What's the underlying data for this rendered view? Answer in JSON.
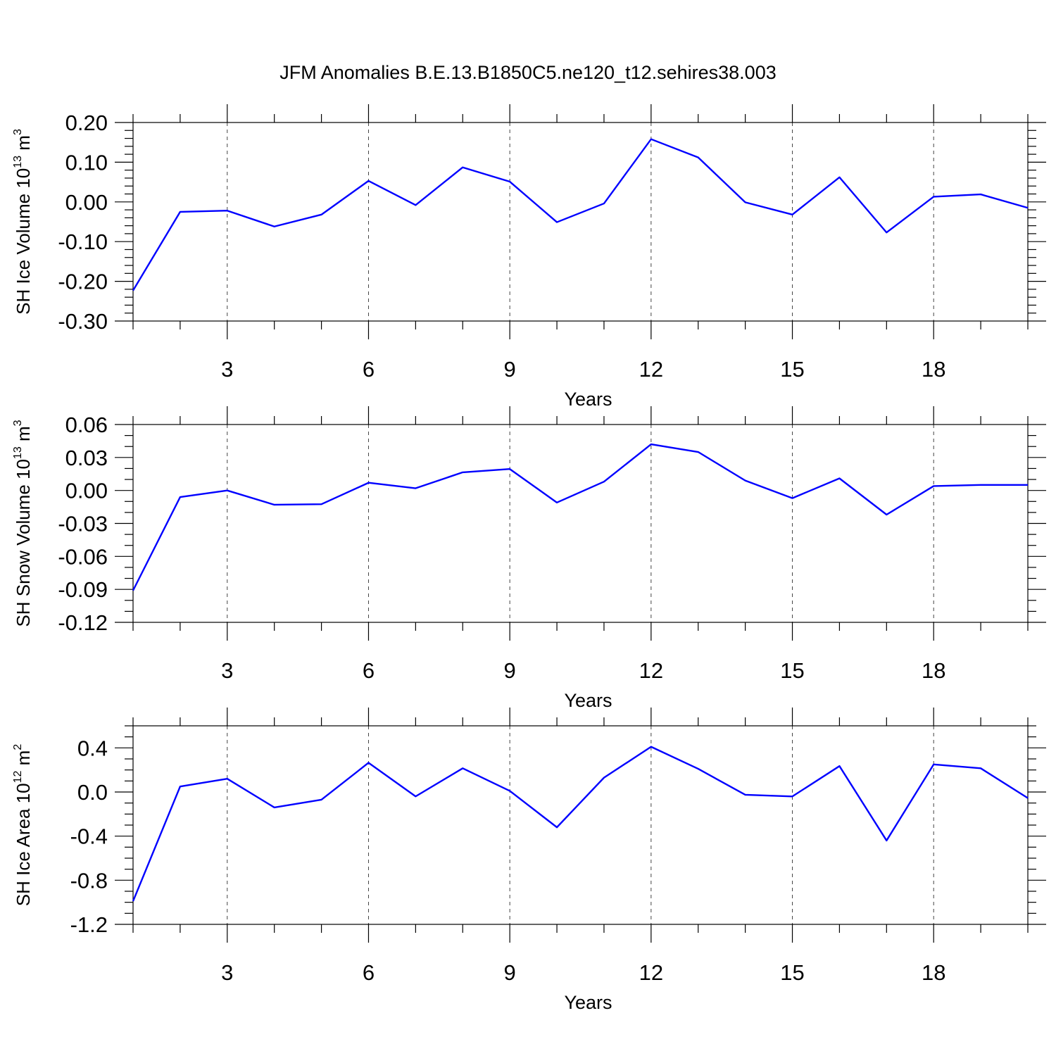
{
  "title": "JFM Anomalies B.E.13.B1850C5.ne120_t12.sehires38.003",
  "line_color": "#0000ff",
  "chart_data": [
    {
      "type": "line",
      "ylabel": "SH Ice Volume 10",
      "ylabel_exp": "13",
      "ylabel_unit": " m",
      "ylabel_unit_exp": "3",
      "xlabel": "Years",
      "x": [
        1,
        2,
        3,
        4,
        5,
        6,
        7,
        8,
        9,
        10,
        11,
        12,
        13,
        14,
        15,
        16,
        17,
        18,
        19,
        20
      ],
      "values": [
        -0.223,
        -0.025,
        -0.022,
        -0.062,
        -0.032,
        0.053,
        -0.008,
        0.087,
        0.051,
        -0.051,
        -0.004,
        0.158,
        0.112,
        -0.001,
        -0.032,
        0.062,
        -0.077,
        0.013,
        0.019,
        -0.015
      ],
      "xlim": [
        1,
        20
      ],
      "ylim": [
        -0.3,
        0.2
      ],
      "xticks": [
        3,
        6,
        9,
        12,
        15,
        18
      ],
      "xtick_labels": [
        "3",
        "6",
        "9",
        "12",
        "15",
        "18"
      ],
      "yticks": [
        -0.3,
        -0.2,
        -0.1,
        0.0,
        0.1,
        0.2
      ],
      "ytick_labels": [
        "-0.30",
        "-0.20",
        "-0.10",
        "0.00",
        "0.10",
        "0.20"
      ],
      "y_minor_step": 0.02,
      "grid": "vertical dashed at major x ticks"
    },
    {
      "type": "line",
      "ylabel": "SH Snow Volume 10",
      "ylabel_exp": "13",
      "ylabel_unit": " m",
      "ylabel_unit_exp": "3",
      "xlabel": "Years",
      "x": [
        1,
        2,
        3,
        4,
        5,
        6,
        7,
        8,
        9,
        10,
        11,
        12,
        13,
        14,
        15,
        16,
        17,
        18,
        19,
        20
      ],
      "values": [
        -0.091,
        -0.006,
        0.0,
        -0.013,
        -0.0125,
        0.007,
        0.002,
        0.0165,
        0.0195,
        -0.011,
        0.008,
        0.042,
        0.035,
        0.009,
        -0.007,
        0.011,
        -0.022,
        0.004,
        0.005,
        0.005
      ],
      "xlim": [
        1,
        20
      ],
      "ylim": [
        -0.12,
        0.06
      ],
      "xticks": [
        3,
        6,
        9,
        12,
        15,
        18
      ],
      "xtick_labels": [
        "3",
        "6",
        "9",
        "12",
        "15",
        "18"
      ],
      "yticks": [
        -0.12,
        -0.09,
        -0.06,
        -0.03,
        0.0,
        0.03,
        0.06
      ],
      "ytick_labels": [
        "-0.12",
        "-0.09",
        "-0.06",
        "-0.03",
        "0.00",
        "0.03",
        "0.06"
      ],
      "y_minor_step": 0.01,
      "grid": "vertical dashed at major x ticks"
    },
    {
      "type": "line",
      "ylabel": "SH Ice Area 10",
      "ylabel_exp": "12",
      "ylabel_unit": " m",
      "ylabel_unit_exp": "2",
      "xlabel": "Years",
      "x": [
        1,
        2,
        3,
        4,
        5,
        6,
        7,
        8,
        9,
        10,
        11,
        12,
        13,
        14,
        15,
        16,
        17,
        18,
        19,
        20
      ],
      "values": [
        -0.99,
        0.05,
        0.12,
        -0.14,
        -0.07,
        0.265,
        -0.04,
        0.215,
        0.01,
        -0.32,
        0.13,
        0.41,
        0.21,
        -0.025,
        -0.04,
        0.235,
        -0.44,
        0.25,
        0.215,
        -0.055
      ],
      "xlim": [
        1,
        20
      ],
      "ylim": [
        -1.2,
        0.6
      ],
      "xticks": [
        3,
        6,
        9,
        12,
        15,
        18
      ],
      "xtick_labels": [
        "3",
        "6",
        "9",
        "12",
        "15",
        "18"
      ],
      "yticks": [
        -1.2,
        -0.8,
        -0.4,
        0.0,
        0.4
      ],
      "ytick_labels": [
        "-1.2",
        "-0.8",
        "-0.4",
        "0.0",
        "0.4"
      ],
      "y_minor_step": 0.1,
      "grid": "vertical dashed at major x ticks"
    }
  ]
}
